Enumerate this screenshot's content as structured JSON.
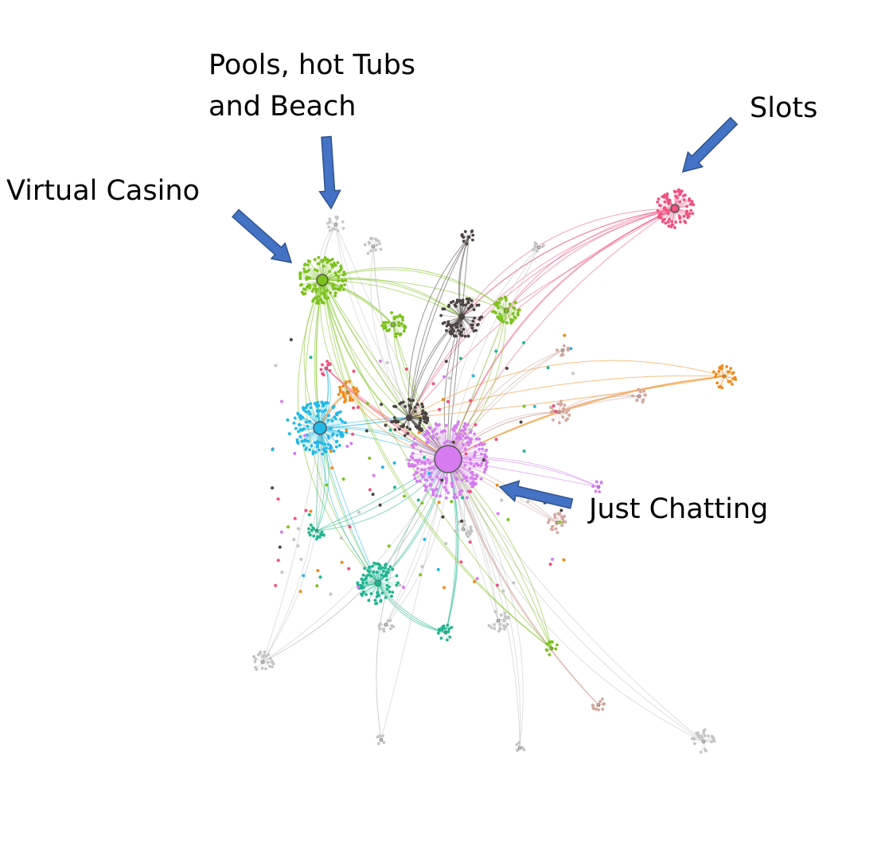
{
  "annotations": [
    {
      "id": "pools",
      "lines": [
        "Pools, hot Tubs",
        "and Beach"
      ]
    },
    {
      "id": "virtual_casino",
      "lines": [
        "Virtual Casino"
      ]
    },
    {
      "id": "slots",
      "lines": [
        "Slots"
      ]
    },
    {
      "id": "just_chatting",
      "lines": [
        "Just Chatting"
      ]
    }
  ],
  "colors": {
    "arrow_fill": "#4472C4",
    "arrow_stroke": "#2F528F",
    "just_chatting": "#D67BF0",
    "virtual_casino": "#22B8E8",
    "pools": "#C8C8C8",
    "slots": "#F0507F",
    "lime_green": "#7CC21C",
    "dark_gray": "#4A4340",
    "orange": "#F08A1C",
    "teal": "#1FB58F",
    "light_gray": "#C4C4C4",
    "dusty_pink": "#D2A79E"
  }
}
